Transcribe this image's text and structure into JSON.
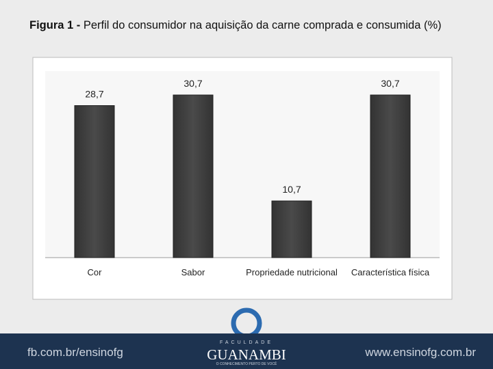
{
  "chart_data": {
    "type": "bar",
    "title_label": "Figura 1 -",
    "title": "Perfil do consumidor na aquisição da carne comprada e consumida (%)",
    "categories": [
      "Cor",
      "Sabor",
      "Propriedade nutricional",
      "Característica física"
    ],
    "values": [
      28.7,
      30.7,
      10.7,
      30.7
    ],
    "value_labels": [
      "28,7",
      "30,7",
      "10,7",
      "30,7"
    ],
    "color": "#4a4a4a"
  },
  "footer": {
    "left": "fb.com.br/ensinofg",
    "logo_top": "FACULDADE",
    "logo_name": "GUANAMBI",
    "logo_tagline": "O CONHECIMENTO PERTO DE VOCÊ",
    "right": "www.ensinofg.com.br"
  }
}
